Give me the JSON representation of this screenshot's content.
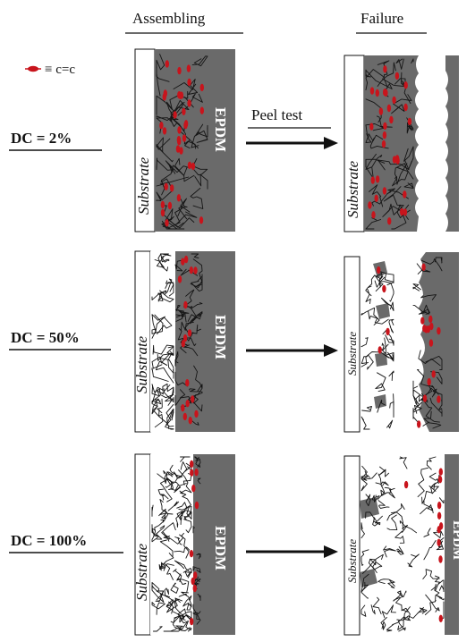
{
  "headers": {
    "assembling": "Assembling",
    "failure": "Failure"
  },
  "legend": {
    "symbol_text": "≡ c=c",
    "colors": {
      "crosslink": "#c8141c",
      "epdm": "#6a6a6a",
      "substrate": "#ffffff"
    }
  },
  "arrow_label": "Peel test",
  "rows": [
    {
      "dc_label": "DC = 2%",
      "substrate": "Substrate",
      "epdm": "EPDM"
    },
    {
      "dc_label": "DC = 50%",
      "substrate": "Substrate",
      "epdm": "EPDM",
      "failure_substrate": "Substrate"
    },
    {
      "dc_label": "DC = 100%",
      "substrate": "Substrate",
      "epdm": "EPDM",
      "failure_substrate": "Substrate",
      "failure_epdm": "EPDM"
    }
  ]
}
